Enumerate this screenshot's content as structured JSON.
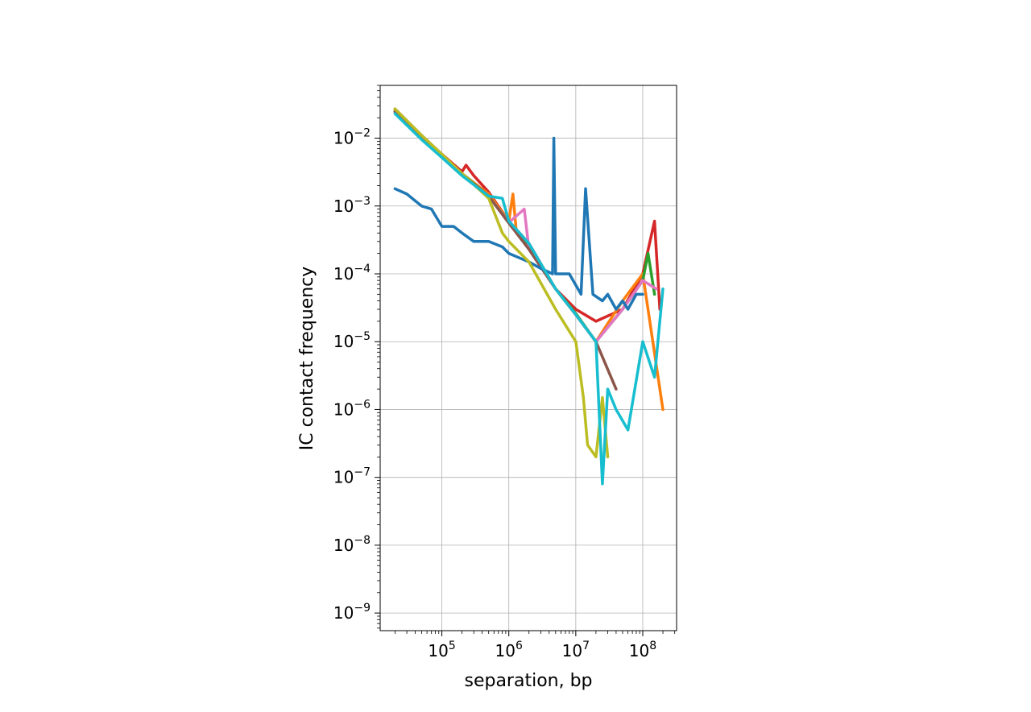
{
  "chart_data": {
    "type": "line",
    "title": "",
    "xlabel": "separation, bp",
    "ylabel": "IC contact frequency",
    "xscale": "log",
    "yscale": "log",
    "xlim": [
      12000,
      320000000
    ],
    "ylim": [
      5.5e-10,
      0.06
    ],
    "grid": true,
    "legend": "none",
    "x_ticks": [
      {
        "base": "10",
        "exp": "5",
        "value": 100000
      },
      {
        "base": "10",
        "exp": "6",
        "value": 1000000
      },
      {
        "base": "10",
        "exp": "7",
        "value": 10000000
      },
      {
        "base": "10",
        "exp": "8",
        "value": 100000000
      }
    ],
    "y_ticks": [
      {
        "base": "10",
        "exp": "−2",
        "value": 0.01
      },
      {
        "base": "10",
        "exp": "−3",
        "value": 0.001
      },
      {
        "base": "10",
        "exp": "−4",
        "value": 0.0001
      },
      {
        "base": "10",
        "exp": "−5",
        "value": 1e-05
      },
      {
        "base": "10",
        "exp": "−6",
        "value": 1e-06
      },
      {
        "base": "10",
        "exp": "−7",
        "value": 1e-07
      },
      {
        "base": "10",
        "exp": "−8",
        "value": 1e-08
      },
      {
        "base": "10",
        "exp": "−9",
        "value": 1e-09
      }
    ],
    "series": [
      {
        "color": "#d62728",
        "x": [
          20000,
          50000,
          100000,
          200000,
          230000,
          300000,
          500000,
          1000000,
          2000000,
          5000000,
          10000000,
          20000000,
          50000000,
          100000000,
          150000000,
          180000000
        ],
        "y": [
          0.027,
          0.011,
          0.0058,
          0.0032,
          0.004,
          0.0028,
          0.0016,
          0.0006,
          0.00028,
          6e-05,
          3e-05,
          2e-05,
          3e-05,
          0.0001,
          0.0006,
          3e-05
        ]
      },
      {
        "color": "#ff7f0e",
        "x": [
          20000,
          50000,
          100000,
          200000,
          500000,
          1000000,
          1150000,
          1300000,
          2000000,
          5000000,
          10000000,
          20000000,
          50000000,
          100000000,
          200000000
        ],
        "y": [
          0.026,
          0.0105,
          0.0056,
          0.003,
          0.0015,
          0.0006,
          0.0015,
          0.0004,
          0.00025,
          6e-05,
          2.5e-05,
          1e-05,
          4e-05,
          0.0001,
          1e-06
        ]
      },
      {
        "color": "#2ca02c",
        "x": [
          20000,
          50000,
          100000,
          200000,
          500000,
          1000000,
          2000000,
          5000000,
          10000000,
          20000000,
          50000000,
          100000000,
          120000000,
          150000000
        ],
        "y": [
          0.025,
          0.0102,
          0.0055,
          0.003,
          0.0014,
          0.00058,
          0.00024,
          6e-05,
          2.6e-05,
          1e-05,
          3e-05,
          8e-05,
          0.0002,
          5e-05
        ]
      },
      {
        "color": "#e377c2",
        "x": [
          20000,
          50000,
          100000,
          200000,
          500000,
          1000000,
          1700000,
          2000000,
          5000000,
          10000000,
          20000000,
          50000000,
          100000000,
          160000000
        ],
        "y": [
          0.024,
          0.01,
          0.0054,
          0.0029,
          0.0014,
          0.00057,
          0.0009,
          0.00023,
          6e-05,
          2.5e-05,
          1e-05,
          3e-05,
          8e-05,
          6e-05
        ]
      },
      {
        "color": "#8c564b",
        "x": [
          20000,
          50000,
          100000,
          200000,
          500000,
          1000000,
          2000000,
          5000000,
          10000000,
          20000000,
          40000000
        ],
        "y": [
          0.0245,
          0.0101,
          0.0054,
          0.0029,
          0.0014,
          0.00056,
          0.00023,
          6e-05,
          2.5e-05,
          1e-05,
          2e-06
        ]
      },
      {
        "color": "#1f77b4",
        "x": [
          20000,
          30000,
          50000,
          70000,
          100000,
          150000,
          200000,
          300000,
          500000,
          800000,
          1000000,
          2000000,
          3000000,
          4500000,
          4700000,
          5000000,
          8000000,
          12000000,
          14000000,
          18000000,
          25000000,
          30000000,
          40000000,
          50000000,
          60000000,
          80000000,
          100000000
        ],
        "y": [
          0.0018,
          0.0015,
          0.001,
          0.0009,
          0.0005,
          0.0005,
          0.0004,
          0.0003,
          0.0003,
          0.00025,
          0.0002,
          0.00015,
          0.00012,
          0.0001,
          0.01,
          0.0001,
          0.0001,
          5e-05,
          0.0018,
          5e-05,
          4e-05,
          5e-05,
          3e-05,
          4e-05,
          3e-05,
          5e-05,
          5e-05
        ]
      },
      {
        "color": "#bcbd22",
        "x": [
          20000,
          50000,
          100000,
          200000,
          500000,
          800000,
          1000000,
          2000000,
          5000000,
          10000000,
          13000000,
          15000000,
          20000000,
          25000000,
          30000000
        ],
        "y": [
          0.027,
          0.011,
          0.0058,
          0.003,
          0.0013,
          0.0004,
          0.0003,
          0.00015,
          3e-05,
          1e-05,
          1.5e-06,
          3e-07,
          2e-07,
          1.5e-06,
          2e-07
        ]
      },
      {
        "color": "#17becf",
        "x": [
          20000,
          50000,
          100000,
          200000,
          500000,
          800000,
          1000000,
          2000000,
          5000000,
          10000000,
          20000000,
          25000000,
          30000000,
          40000000,
          60000000,
          100000000,
          150000000,
          200000000
        ],
        "y": [
          0.023,
          0.0095,
          0.0052,
          0.0028,
          0.0014,
          0.0013,
          0.0006,
          0.00028,
          6e-05,
          2.5e-05,
          1e-05,
          8e-08,
          2e-06,
          1e-06,
          5e-07,
          1e-05,
          3e-06,
          6e-05
        ]
      }
    ]
  }
}
